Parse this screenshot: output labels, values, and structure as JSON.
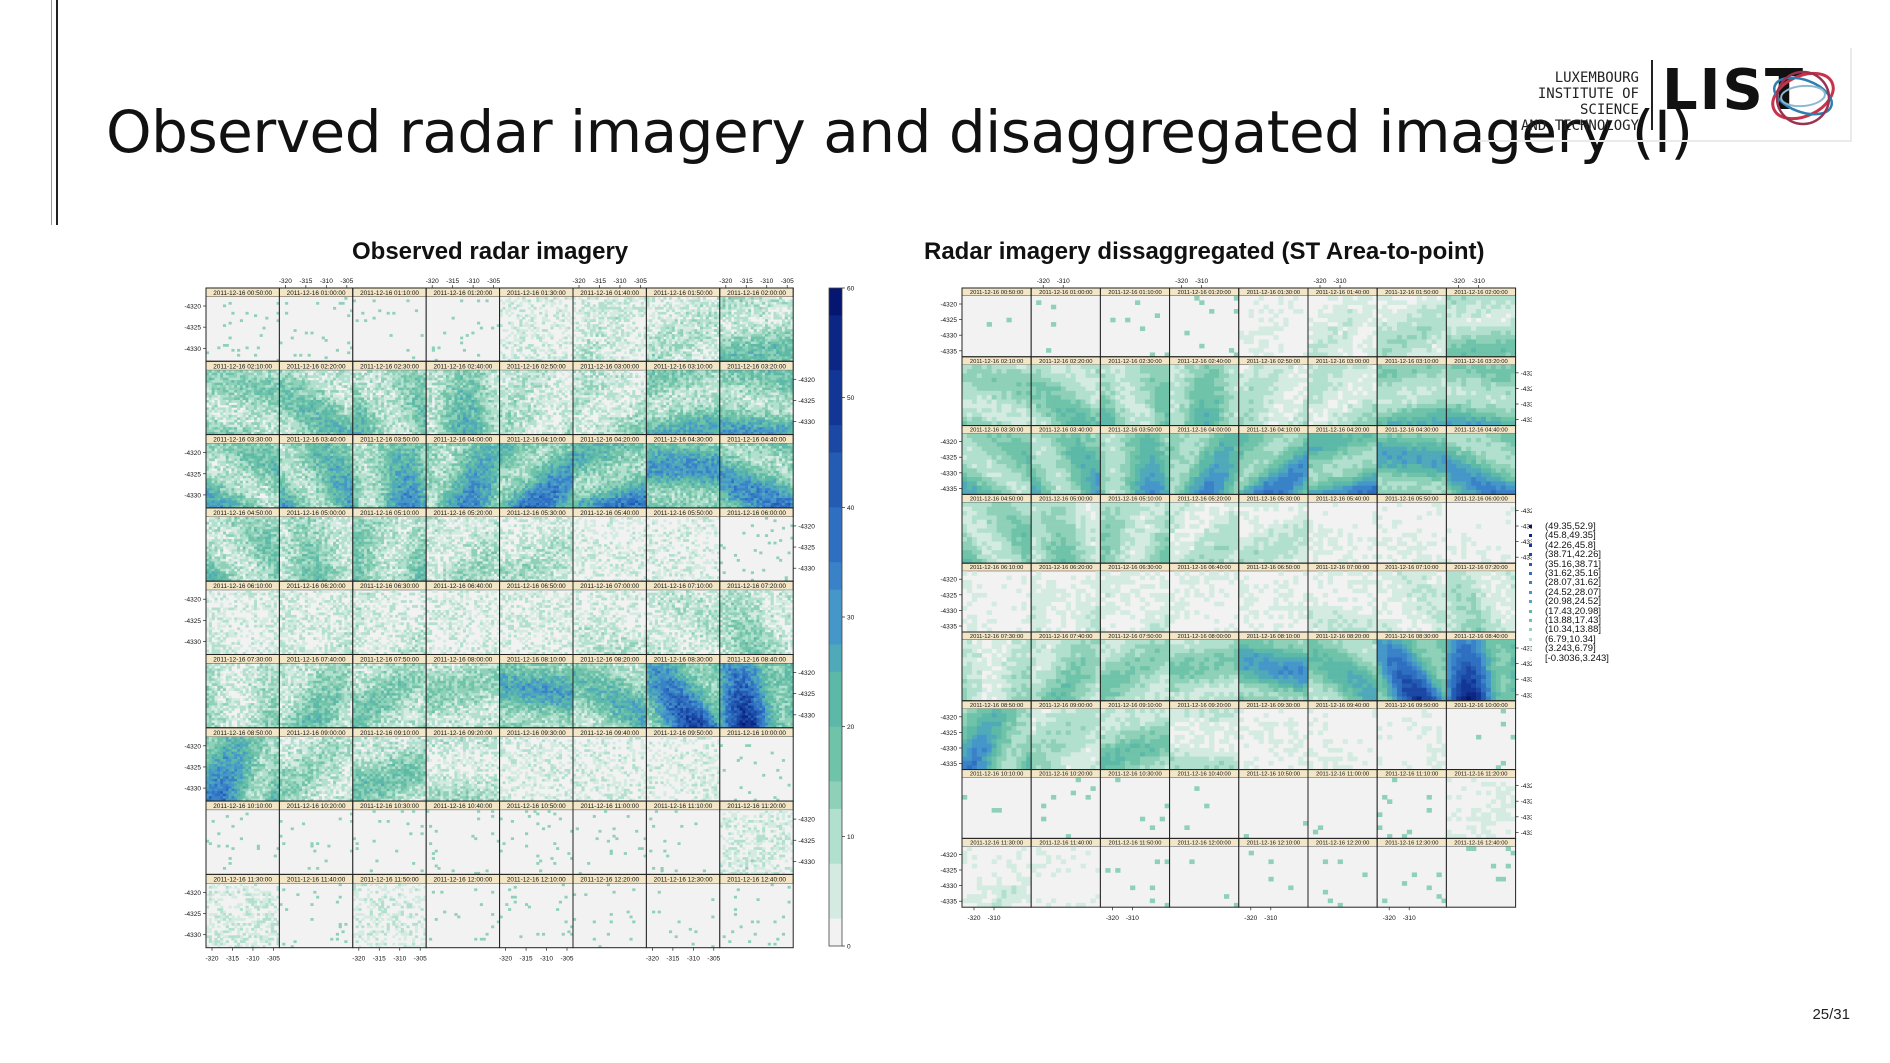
{
  "slide": {
    "title": "Observed radar imagery and disaggregated imagery (I)",
    "page_number": "25/31"
  },
  "logo": {
    "text_lines": [
      "LUXEMBOURG",
      "INSTITUTE OF SCIENCE",
      "AND TECHNOLOGY"
    ],
    "wordmark": "LIST",
    "icon": "list-orbit-logo-icon"
  },
  "chart_data": [
    {
      "type": "heatmap",
      "title": "Observed radar imagery",
      "layout": {
        "columns": 8,
        "rows": 9
      },
      "panel_labels": [
        "2011-12-16 00:50:00",
        "2011-12-16 01:00:00",
        "2011-12-16 01:10:00",
        "2011-12-16 01:20:00",
        "2011-12-16 01:30:00",
        "2011-12-16 01:40:00",
        "2011-12-16 01:50:00",
        "2011-12-16 02:00:00",
        "2011-12-16 02:10:00",
        "2011-12-16 02:20:00",
        "2011-12-16 02:30:00",
        "2011-12-16 02:40:00",
        "2011-12-16 02:50:00",
        "2011-12-16 03:00:00",
        "2011-12-16 03:10:00",
        "2011-12-16 03:20:00",
        "2011-12-16 03:30:00",
        "2011-12-16 03:40:00",
        "2011-12-16 03:50:00",
        "2011-12-16 04:00:00",
        "2011-12-16 04:10:00",
        "2011-12-16 04:20:00",
        "2011-12-16 04:30:00",
        "2011-12-16 04:40:00",
        "2011-12-16 04:50:00",
        "2011-12-16 05:00:00",
        "2011-12-16 05:10:00",
        "2011-12-16 05:20:00",
        "2011-12-16 05:30:00",
        "2011-12-16 05:40:00",
        "2011-12-16 05:50:00",
        "2011-12-16 06:00:00",
        "2011-12-16 06:10:00",
        "2011-12-16 06:20:00",
        "2011-12-16 06:30:00",
        "2011-12-16 06:40:00",
        "2011-12-16 06:50:00",
        "2011-12-16 07:00:00",
        "2011-12-16 07:10:00",
        "2011-12-16 07:20:00",
        "2011-12-16 07:30:00",
        "2011-12-16 07:40:00",
        "2011-12-16 07:50:00",
        "2011-12-16 08:00:00",
        "2011-12-16 08:10:00",
        "2011-12-16 08:20:00",
        "2011-12-16 08:30:00",
        "2011-12-16 08:40:00",
        "2011-12-16 08:50:00",
        "2011-12-16 09:00:00",
        "2011-12-16 09:10:00",
        "2011-12-16 09:20:00",
        "2011-12-16 09:30:00",
        "2011-12-16 09:40:00",
        "2011-12-16 09:50:00",
        "2011-12-16 10:00:00",
        "2011-12-16 10:10:00",
        "2011-12-16 10:20:00",
        "2011-12-16 10:30:00",
        "2011-12-16 10:40:00",
        "2011-12-16 10:50:00",
        "2011-12-16 11:00:00",
        "2011-12-16 11:10:00",
        "2011-12-16 11:20:00",
        "2011-12-16 11:30:00",
        "2011-12-16 11:40:00",
        "2011-12-16 11:50:00",
        "2011-12-16 12:00:00",
        "2011-12-16 12:10:00",
        "2011-12-16 12:20:00",
        "2011-12-16 12:30:00",
        "2011-12-16 12:40:00"
      ],
      "panel_intensity": [
        0,
        0,
        0,
        0,
        0.03,
        0.08,
        0.12,
        0.24,
        0.26,
        0.27,
        0.28,
        0.3,
        0.14,
        0.16,
        0.32,
        0.36,
        0.33,
        0.38,
        0.4,
        0.42,
        0.47,
        0.45,
        0.5,
        0.44,
        0.26,
        0.22,
        0.24,
        0.14,
        0.12,
        0.03,
        0.03,
        0.02,
        0.05,
        0.07,
        0.09,
        0.04,
        0.05,
        0.08,
        0.12,
        0.18,
        0.17,
        0.24,
        0.24,
        0.22,
        0.44,
        0.33,
        0.58,
        0.66,
        0.46,
        0.18,
        0.24,
        0.12,
        0.04,
        0.03,
        0.03,
        0.02,
        0,
        0,
        0.02,
        0,
        0,
        0,
        0.01,
        0.06,
        0.05,
        0.02,
        0.03,
        0,
        0,
        0,
        0,
        0
      ],
      "x_ticks": [
        "-320",
        "-315",
        "-310",
        "-305"
      ],
      "y_ticks": [
        "-4320",
        "-4325",
        "-4330"
      ],
      "colorbar": {
        "ticks": [
          "0",
          "10",
          "20",
          "30",
          "40",
          "50",
          "60"
        ],
        "range": [
          0,
          60
        ]
      }
    },
    {
      "type": "heatmap",
      "title": "Radar imagery dissaggregated (ST Area-to-point)",
      "layout": {
        "columns": 8,
        "rows": 9
      },
      "panel_labels": [
        "2011-12-16 00:50:00",
        "2011-12-16 01:00:00",
        "2011-12-16 01:10:00",
        "2011-12-16 01:20:00",
        "2011-12-16 01:30:00",
        "2011-12-16 01:40:00",
        "2011-12-16 01:50:00",
        "2011-12-16 02:00:00",
        "2011-12-16 02:10:00",
        "2011-12-16 02:20:00",
        "2011-12-16 02:30:00",
        "2011-12-16 02:40:00",
        "2011-12-16 02:50:00",
        "2011-12-16 03:00:00",
        "2011-12-16 03:10:00",
        "2011-12-16 03:20:00",
        "2011-12-16 03:30:00",
        "2011-12-16 03:40:00",
        "2011-12-16 03:50:00",
        "2011-12-16 04:00:00",
        "2011-12-16 04:10:00",
        "2011-12-16 04:20:00",
        "2011-12-16 04:30:00",
        "2011-12-16 04:40:00",
        "2011-12-16 04:50:00",
        "2011-12-16 05:00:00",
        "2011-12-16 05:10:00",
        "2011-12-16 05:20:00",
        "2011-12-16 05:30:00",
        "2011-12-16 05:40:00",
        "2011-12-16 05:50:00",
        "2011-12-16 06:00:00",
        "2011-12-16 06:10:00",
        "2011-12-16 06:20:00",
        "2011-12-16 06:30:00",
        "2011-12-16 06:40:00",
        "2011-12-16 06:50:00",
        "2011-12-16 07:00:00",
        "2011-12-16 07:10:00",
        "2011-12-16 07:20:00",
        "2011-12-16 07:30:00",
        "2011-12-16 07:40:00",
        "2011-12-16 07:50:00",
        "2011-12-16 08:00:00",
        "2011-12-16 08:10:00",
        "2011-12-16 08:20:00",
        "2011-12-16 08:30:00",
        "2011-12-16 08:40:00",
        "2011-12-16 08:50:00",
        "2011-12-16 09:00:00",
        "2011-12-16 09:10:00",
        "2011-12-16 09:20:00",
        "2011-12-16 09:30:00",
        "2011-12-16 09:40:00",
        "2011-12-16 09:50:00",
        "2011-12-16 10:00:00",
        "2011-12-16 10:10:00",
        "2011-12-16 10:20:00",
        "2011-12-16 10:30:00",
        "2011-12-16 10:40:00",
        "2011-12-16 10:50:00",
        "2011-12-16 11:00:00",
        "2011-12-16 11:10:00",
        "2011-12-16 11:20:00",
        "2011-12-16 11:30:00",
        "2011-12-16 11:40:00",
        "2011-12-16 11:50:00",
        "2011-12-16 12:00:00",
        "2011-12-16 12:10:00",
        "2011-12-16 12:20:00",
        "2011-12-16 12:30:00",
        "2011-12-16 12:40:00"
      ],
      "panel_intensity": [
        0,
        0,
        0,
        0,
        0.04,
        0.08,
        0.14,
        0.22,
        0.24,
        0.26,
        0.27,
        0.29,
        0.14,
        0.15,
        0.3,
        0.33,
        0.32,
        0.36,
        0.38,
        0.42,
        0.46,
        0.44,
        0.46,
        0.42,
        0.26,
        0.22,
        0.22,
        0.13,
        0.11,
        0.04,
        0.04,
        0.03,
        0.04,
        0.08,
        0.08,
        0.05,
        0.05,
        0.08,
        0.1,
        0.16,
        0.15,
        0.24,
        0.24,
        0.26,
        0.48,
        0.34,
        0.62,
        0.7,
        0.44,
        0.17,
        0.26,
        0.12,
        0.05,
        0.04,
        0.04,
        0.02,
        0,
        0,
        0.02,
        0,
        0,
        0,
        0.01,
        0.05,
        0.06,
        0.03,
        0.02,
        0,
        0,
        0,
        0,
        0.01
      ],
      "x_ticks": [
        "-320",
        "-310"
      ],
      "y_ticks": [
        "-4320",
        "-4325",
        "-4330",
        "-4335"
      ],
      "legend": {
        "placement": "right",
        "entries": [
          "(49.35,52.9]",
          "(45.8,49.35]",
          "(42.26,45.8]",
          "(38.71,42.26]",
          "(35.16,38.71]",
          "(31.62,35.16]",
          "(28.07,31.62]",
          "(24.52,28.07]",
          "(20.98,24.52]",
          "(17.43,20.98]",
          "(13.88,17.43]",
          "(10.34,13.88]",
          "(6.79,10.34]",
          "(3.243,6.79]",
          "[-0.3036,3.243]"
        ]
      }
    }
  ]
}
